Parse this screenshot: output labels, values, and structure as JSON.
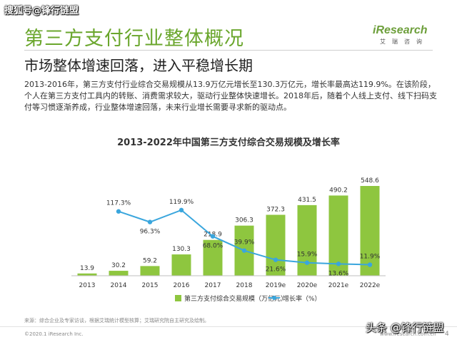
{
  "watermark_top": "搜狐号@锋行链盟",
  "logo": {
    "brand": "iResearch",
    "sub": "艾瑞咨询"
  },
  "page": {
    "title": "第三方支付行业整体概况",
    "subtitle": "市场整体增速回落，进入平稳增长期",
    "description": "2013-2016年，第三方支付行业综合交易规模从13.9万亿元增长至130.3万亿元，增长率最高达119.9%。在该阶段，个人在第三方支付工具内的转账、消费需求较大，驱动行业整体快速增长。2018年后，随着个人线上支付、线下扫码支付等习惯逐渐养成，行业整体增速回落，未来行业增长需要寻求新的驱动点。"
  },
  "chart_data": {
    "type": "bar",
    "title": "2013-2022年中国第三方支付综合交易规模及增长率",
    "categories": [
      "2013",
      "2014",
      "2015",
      "2016",
      "2017",
      "2018",
      "2019e",
      "2020e",
      "2021e",
      "2022e"
    ],
    "series": [
      {
        "name": "第三方支付综合交易规模（万亿元）",
        "kind": "bar",
        "color": "#8ec63f",
        "values": [
          13.9,
          30.2,
          59.2,
          130.3,
          218.9,
          306.3,
          372.3,
          431.5,
          490.2,
          548.6
        ],
        "labels": [
          "13.9",
          "30.2",
          "59.2",
          "130.3",
          "218.9",
          "306.3",
          "372.3",
          "431.5",
          "490.2",
          "548.6"
        ]
      },
      {
        "name": "增长率（%）",
        "kind": "line",
        "color": "#3aa6dd",
        "values": [
          null,
          117.3,
          96.3,
          119.9,
          68.0,
          39.9,
          21.6,
          15.9,
          13.6,
          11.9
        ],
        "labels": [
          "",
          "117.3%",
          "96.3%",
          "119.9%",
          "68.0%",
          "39.9%",
          "21.6%",
          "15.9%",
          "13.6%",
          "11.9%"
        ]
      }
    ],
    "ylim": [
      0,
      600
    ],
    "y2lim": [
      0,
      200
    ],
    "grid": false,
    "legend": "bottom"
  },
  "source": "来源：综合企业及专家访谈，根据艾瑞统计模型核算；艾瑞研究院自主研究及绘制。",
  "footer": {
    "copyright": "©2020.1 iResearch Inc.",
    "url": "www.iresearch.com.cn",
    "page_number": "4"
  },
  "watermark_bottom": "头条 @锋行链盟"
}
